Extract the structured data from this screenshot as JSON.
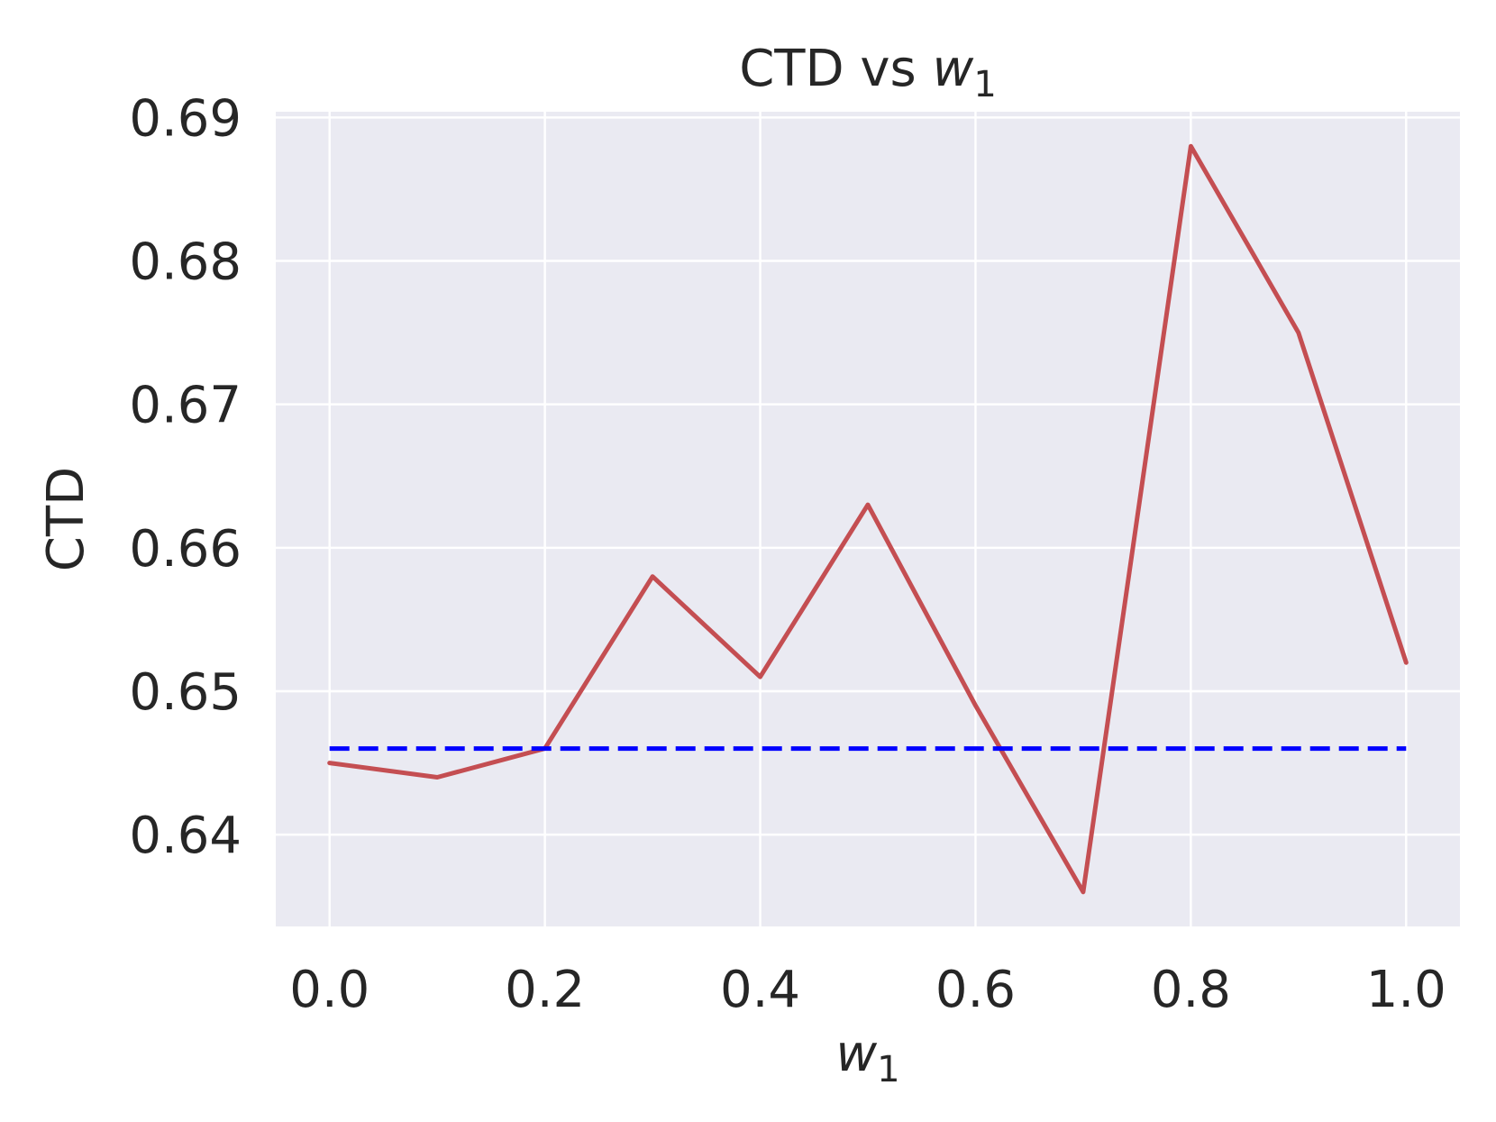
{
  "chart_data": {
    "type": "line",
    "title": "CTD vs ",
    "title_var": "w",
    "title_sub": "1",
    "xlabel_var": "w",
    "xlabel_sub": "1",
    "ylabel": "CTD",
    "xlim": [
      -0.05,
      1.05
    ],
    "ylim": [
      0.6336,
      0.6904
    ],
    "xticks": [
      0.0,
      0.2,
      0.4,
      0.6,
      0.8,
      1.0
    ],
    "xtick_labels": [
      "0.0",
      "0.2",
      "0.4",
      "0.6",
      "0.8",
      "1.0"
    ],
    "yticks": [
      0.64,
      0.65,
      0.66,
      0.67,
      0.68,
      0.69
    ],
    "ytick_labels": [
      "0.64",
      "0.65",
      "0.66",
      "0.67",
      "0.68",
      "0.69"
    ],
    "grid": true,
    "background": "#eaeaf2",
    "series": [
      {
        "style": "solid",
        "color": "#c44e52",
        "x": [
          0.0,
          0.1,
          0.2,
          0.3,
          0.4,
          0.5,
          0.6,
          0.7,
          0.8,
          0.9,
          1.0
        ],
        "values": [
          0.645,
          0.644,
          0.646,
          0.658,
          0.651,
          0.663,
          0.649,
          0.636,
          0.688,
          0.675,
          0.652
        ]
      },
      {
        "style": "dashed",
        "color": "#0000ff",
        "x": [
          0.0,
          1.0
        ],
        "values": [
          0.646,
          0.646
        ]
      }
    ]
  }
}
